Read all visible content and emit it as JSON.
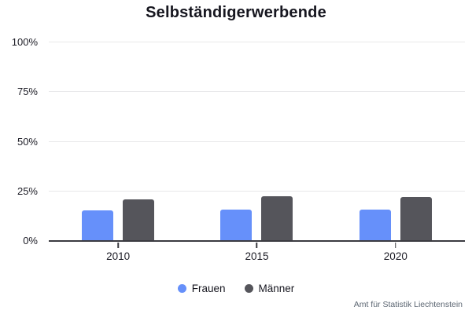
{
  "footer": {
    "source": "Amt für Statistik Liechtenstein"
  },
  "colors": {
    "frauen": "#6690fa",
    "maenner": "#55555b",
    "gridline": "#e8e8ea",
    "axis": "#3b3b41",
    "title_text": "#16161f",
    "tick_text": "#1d1d26",
    "footer_text": "#5c6672"
  },
  "chart_data": {
    "type": "bar",
    "title": "Selbständigerwerbende",
    "categories": [
      "2010",
      "2015",
      "2020"
    ],
    "series": [
      {
        "name": "Frauen",
        "color": "#6690fa",
        "values": [
          15.5,
          16.0,
          15.7
        ]
      },
      {
        "name": "Männer",
        "color": "#55555b",
        "values": [
          21.0,
          22.5,
          22.0
        ]
      }
    ],
    "xlabel": "",
    "ylabel": "",
    "ylim": [
      0,
      100
    ],
    "yticks": [
      0,
      25,
      50,
      75,
      100
    ],
    "ytick_labels": [
      "0%",
      "25%",
      "50%",
      "75%",
      "100%"
    ],
    "grid": true,
    "legend_position": "bottom",
    "source": "Amt für Statistik Liechtenstein"
  }
}
